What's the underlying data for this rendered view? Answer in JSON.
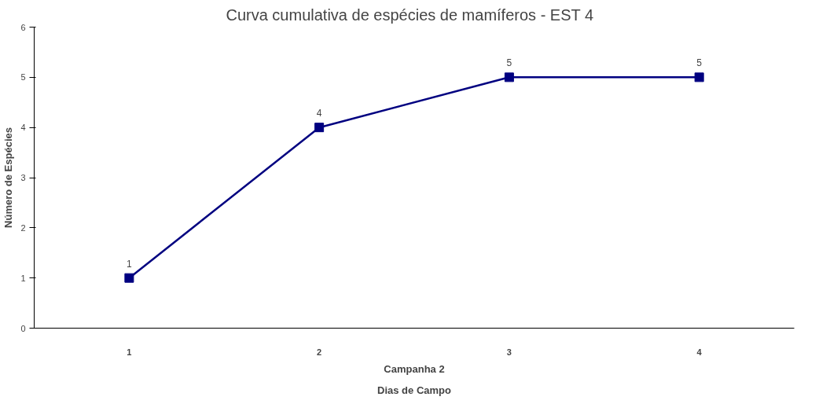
{
  "chart_data": {
    "type": "line",
    "title": "Curva cumulativa de espécies de mamíferos  -  EST 4",
    "categories": [
      "1",
      "2",
      "3",
      "4"
    ],
    "series": [
      {
        "color": "#000080",
        "values": [
          1,
          4,
          5,
          5
        ]
      }
    ],
    "ylim": [
      0,
      6
    ],
    "yticks": [
      0,
      1,
      2,
      3,
      4,
      5,
      6
    ],
    "ylabel": "Número de Espécies",
    "xlabel": "Dias de Campo",
    "annotations": [
      "Campanha 2"
    ],
    "data_labels": true,
    "marker": "square",
    "grid": false
  }
}
